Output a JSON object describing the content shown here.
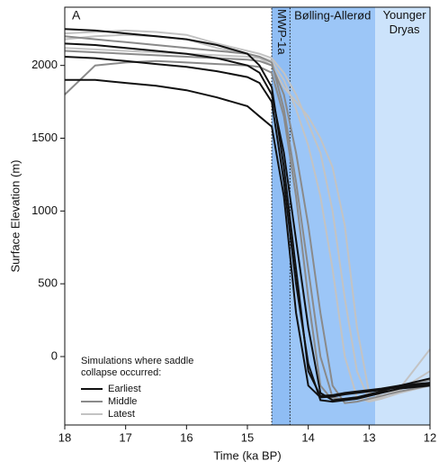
{
  "chart_data": {
    "type": "line",
    "panel_label": "A",
    "xlabel": "Time (ka BP)",
    "ylabel": "Surface Elevation (m)",
    "xlim": [
      18,
      12
    ],
    "ylim": [
      -470,
      2400
    ],
    "xticks": [
      18,
      17,
      16,
      15,
      14,
      13,
      12
    ],
    "yticks": [
      0,
      500,
      1000,
      1500,
      2000
    ],
    "periods": [
      {
        "label": "Bølling-Allerød",
        "start": 14.6,
        "end": 12.9,
        "color": "#9cc6f7"
      },
      {
        "label": "Younger Dryas",
        "start": 12.9,
        "end": 12,
        "color": "#cce3fb"
      },
      {
        "label": "MWP-1a",
        "start": 14.6,
        "end": 14.3,
        "color": "#8fbdf4"
      }
    ],
    "legend_title": "Simulations where saddle collapse occurred:",
    "x": [
      18,
      17.5,
      17,
      16.5,
      16,
      15.5,
      15,
      14.8,
      14.6,
      14.4,
      14.2,
      14,
      13.8,
      13.6,
      13.4,
      13.2,
      13,
      12.8,
      12.5,
      12
    ],
    "series": [
      {
        "name": "Latest",
        "color": "#c3c3c3",
        "lines": [
          [
            2220,
            2230,
            2240,
            2230,
            2210,
            2150,
            2100,
            2080,
            2050,
            1950,
            1800,
            1600,
            1400,
            1000,
            400,
            -100,
            -300,
            -280,
            -220,
            50
          ],
          [
            2180,
            2200,
            2210,
            2200,
            2180,
            2120,
            2080,
            2060,
            2030,
            1900,
            1700,
            1450,
            1100,
            600,
            0,
            -280,
            -310,
            -290,
            -250,
            -200
          ],
          [
            2120,
            2110,
            2100,
            2090,
            2080,
            2070,
            2060,
            2050,
            2000,
            1850,
            1750,
            1650,
            1500,
            1300,
            900,
            200,
            -250,
            -270,
            -230,
            -100
          ]
        ]
      },
      {
        "name": "Middle",
        "color": "#8a8a8a",
        "lines": [
          [
            2200,
            2180,
            2160,
            2140,
            2120,
            2100,
            2080,
            2060,
            2020,
            1700,
            1200,
            600,
            0,
            -280,
            -300,
            -290,
            -270,
            -250,
            -220,
            -180
          ],
          [
            2100,
            2090,
            2080,
            2070,
            2060,
            2050,
            2040,
            2030,
            2000,
            1800,
            1400,
            900,
            300,
            -200,
            -320,
            -310,
            -290,
            -270,
            -240,
            -200
          ],
          [
            1800,
            2000,
            2020,
            2030,
            2020,
            2010,
            2000,
            1990,
            1950,
            1650,
            1100,
            400,
            -200,
            -300,
            -290,
            -280,
            -260,
            -240,
            -200,
            -160
          ]
        ]
      },
      {
        "name": "Earliest",
        "color": "#111111",
        "lines": [
          [
            2250,
            2240,
            2220,
            2200,
            2180,
            2140,
            2080,
            2000,
            1850,
            1300,
            600,
            -100,
            -270,
            -265,
            -250,
            -240,
            -230,
            -220,
            -200,
            -180
          ],
          [
            1900,
            1900,
            1880,
            1860,
            1830,
            1780,
            1720,
            1650,
            1580,
            1100,
            300,
            -200,
            -280,
            -275,
            -260,
            -250,
            -240,
            -230,
            -210,
            -190
          ],
          [
            2150,
            2140,
            2120,
            2100,
            2080,
            2050,
            2000,
            1950,
            1800,
            1400,
            800,
            200,
            -250,
            -300,
            -290,
            -280,
            -260,
            -240,
            -200,
            -150
          ],
          [
            2060,
            2050,
            2030,
            2010,
            1990,
            1960,
            1920,
            1880,
            1750,
            1200,
            500,
            -50,
            -300,
            -310,
            -300,
            -290,
            -270,
            -250,
            -220,
            -200
          ]
        ]
      }
    ]
  }
}
